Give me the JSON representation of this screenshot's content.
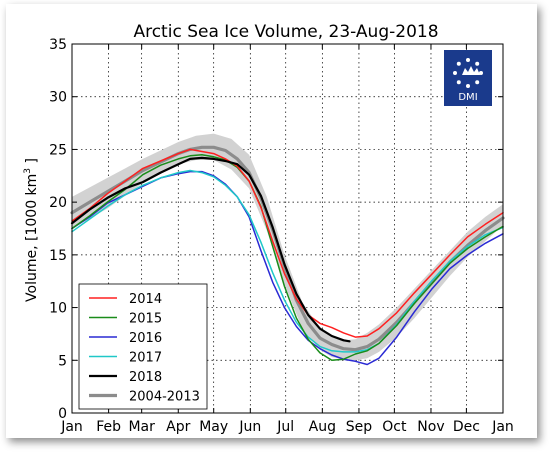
{
  "chart_data": {
    "type": "line",
    "title": "Arctic Sea Ice Volume, 23-Aug-2018",
    "ylabel": "Volume, [1000 km",
    "ylabel_sup": "3",
    "ylabel_end": " ]",
    "xlabel": "",
    "ylim": [
      0,
      35
    ],
    "yticks": [
      0,
      5,
      10,
      15,
      20,
      25,
      30,
      35
    ],
    "xlim": [
      0,
      365
    ],
    "xticks": [
      {
        "label": "Jan",
        "day": 0
      },
      {
        "label": "Feb",
        "day": 31
      },
      {
        "label": "Mar",
        "day": 59
      },
      {
        "label": "Apr",
        "day": 90
      },
      {
        "label": "May",
        "day": 120
      },
      {
        "label": "Jun",
        "day": 151
      },
      {
        "label": "Jul",
        "day": 181
      },
      {
        "label": "Aug",
        "day": 212
      },
      {
        "label": "Sep",
        "day": 243
      },
      {
        "label": "Oct",
        "day": 273
      },
      {
        "label": "Nov",
        "day": 304
      },
      {
        "label": "Dec",
        "day": 334
      },
      {
        "label": "Jan",
        "day": 365
      }
    ],
    "grid": true,
    "legend_position": "bottom-left",
    "logo_text": "DMI",
    "band": {
      "x": [
        0,
        30,
        60,
        90,
        105,
        120,
        135,
        150,
        165,
        180,
        195,
        210,
        220,
        230,
        240,
        250,
        260,
        275,
        290,
        305,
        320,
        335,
        350,
        365
      ],
      "upper": [
        20.5,
        22.3,
        24.1,
        25.7,
        26.3,
        26.5,
        26.0,
        24.5,
        20.5,
        15.0,
        10.5,
        8.0,
        7.2,
        6.9,
        7.0,
        7.6,
        8.4,
        10.0,
        11.8,
        13.6,
        15.4,
        17.2,
        18.6,
        19.8
      ],
      "lower": [
        17.5,
        19.4,
        21.8,
        23.6,
        24.0,
        24.0,
        23.1,
        21.3,
        17.3,
        12.2,
        8.0,
        6.0,
        5.3,
        5.1,
        5.0,
        5.2,
        5.8,
        7.2,
        9.0,
        11.0,
        13.0,
        14.8,
        16.3,
        17.8
      ]
    },
    "series": [
      {
        "name": "2014",
        "color": "#ff2020",
        "width": 1.5,
        "x": [
          0,
          15,
          30,
          45,
          60,
          75,
          90,
          100,
          110,
          120,
          130,
          140,
          150,
          160,
          170,
          180,
          190,
          200,
          210,
          220,
          230,
          240,
          250,
          260,
          275,
          290,
          305,
          320,
          335,
          350,
          365
        ],
        "y": [
          18.2,
          19.4,
          20.8,
          22.0,
          23.2,
          23.9,
          24.6,
          25.0,
          24.8,
          24.6,
          24.1,
          23.4,
          22.0,
          19.5,
          16.3,
          13.2,
          10.8,
          9.3,
          8.5,
          8.1,
          7.6,
          7.2,
          7.3,
          8.0,
          9.5,
          11.4,
          13.2,
          15.0,
          16.7,
          17.9,
          19.0
        ]
      },
      {
        "name": "2015",
        "color": "#1a8c1a",
        "width": 1.5,
        "x": [
          0,
          15,
          30,
          45,
          60,
          75,
          90,
          100,
          110,
          120,
          130,
          140,
          150,
          160,
          170,
          180,
          190,
          200,
          210,
          220,
          230,
          240,
          250,
          260,
          275,
          290,
          305,
          320,
          335,
          350,
          365
        ],
        "y": [
          17.5,
          18.7,
          20.0,
          21.2,
          22.6,
          23.5,
          24.1,
          24.4,
          24.5,
          24.3,
          24.0,
          23.3,
          22.0,
          19.6,
          15.8,
          12.0,
          9.0,
          7.0,
          5.7,
          5.0,
          5.1,
          5.6,
          5.9,
          6.6,
          8.3,
          10.4,
          12.3,
          14.2,
          15.6,
          16.7,
          17.7
        ]
      },
      {
        "name": "2016",
        "color": "#2a2ad4",
        "width": 1.5,
        "x": [
          0,
          15,
          30,
          45,
          60,
          75,
          90,
          100,
          110,
          120,
          130,
          140,
          150,
          160,
          170,
          180,
          190,
          200,
          210,
          220,
          230,
          240,
          250,
          260,
          275,
          290,
          305,
          320,
          335,
          350,
          365
        ],
        "y": [
          17.5,
          18.6,
          19.9,
          20.7,
          21.5,
          22.3,
          22.7,
          22.9,
          22.9,
          22.5,
          21.7,
          20.5,
          18.6,
          15.4,
          12.4,
          10.0,
          8.2,
          6.9,
          6.1,
          5.5,
          5.1,
          4.9,
          4.6,
          5.2,
          7.2,
          9.6,
          11.8,
          13.7,
          15.0,
          16.1,
          17.0
        ]
      },
      {
        "name": "2017",
        "color": "#20c8c8",
        "width": 1.5,
        "x": [
          0,
          15,
          30,
          45,
          60,
          75,
          90,
          100,
          110,
          120,
          130,
          140,
          150,
          160,
          170,
          180,
          190,
          200,
          210,
          220,
          230,
          240,
          250,
          260,
          275,
          290,
          305,
          320,
          335,
          350,
          365
        ],
        "y": [
          17.2,
          18.4,
          19.6,
          20.7,
          21.6,
          22.3,
          22.8,
          23.0,
          22.8,
          22.4,
          21.6,
          20.5,
          18.8,
          16.2,
          13.3,
          10.7,
          8.6,
          7.2,
          6.3,
          5.9,
          5.8,
          5.8,
          6.0,
          6.6,
          8.4,
          10.6,
          12.6,
          14.4,
          15.8,
          16.9,
          17.6
        ]
      },
      {
        "name": "2018",
        "color": "#000000",
        "width": 2.2,
        "x": [
          0,
          15,
          30,
          45,
          60,
          75,
          90,
          100,
          110,
          120,
          130,
          140,
          150,
          160,
          170,
          180,
          190,
          200,
          210,
          220,
          230,
          235
        ],
        "y": [
          18.0,
          19.3,
          20.4,
          21.3,
          21.9,
          22.8,
          23.6,
          24.1,
          24.2,
          24.1,
          23.9,
          23.6,
          22.6,
          20.6,
          17.6,
          14.1,
          11.3,
          9.3,
          8.0,
          7.3,
          6.9,
          6.8
        ]
      },
      {
        "name": "2004-2013",
        "color": "#8c8c8c",
        "width": 3.2,
        "x": [
          0,
          15,
          30,
          45,
          60,
          75,
          90,
          100,
          110,
          120,
          130,
          140,
          150,
          160,
          170,
          180,
          190,
          200,
          210,
          220,
          230,
          240,
          250,
          260,
          275,
          290,
          305,
          320,
          335,
          350,
          365
        ],
        "y": [
          19.0,
          20.0,
          21.0,
          22.0,
          23.0,
          23.8,
          24.6,
          25.0,
          25.2,
          25.2,
          24.9,
          24.1,
          22.8,
          20.4,
          17.4,
          13.9,
          10.7,
          8.5,
          7.1,
          6.5,
          6.1,
          6.0,
          6.3,
          7.0,
          8.6,
          10.5,
          12.4,
          14.3,
          15.9,
          17.3,
          18.5
        ]
      }
    ]
  }
}
